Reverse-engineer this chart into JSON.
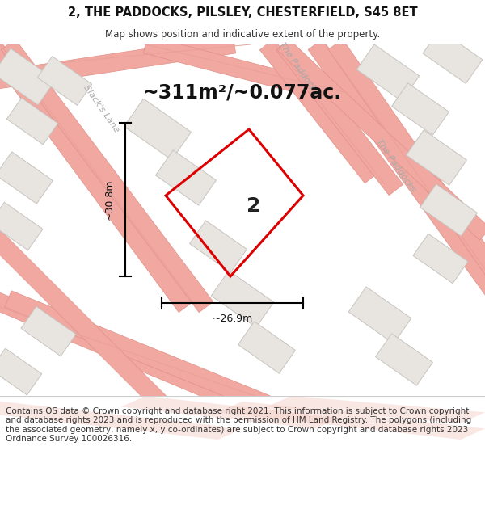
{
  "title_line1": "2, THE PADDOCKS, PILSLEY, CHESTERFIELD, S45 8ET",
  "title_line2": "Map shows position and indicative extent of the property.",
  "area_label": "~311m²/~0.077ac.",
  "plot_number": "2",
  "dim_height": "~30.8m",
  "dim_width": "~26.9m",
  "footer": "Contains OS data © Crown copyright and database right 2021. This information is subject to Crown copyright and database rights 2023 and is reproduced with the permission of HM Land Registry. The polygons (including the associated geometry, namely x, y co-ordinates) are subject to Crown copyright and database rights 2023 Ordnance Survey 100026316.",
  "bg_color": "#ffffff",
  "map_bg": "#f8f6f4",
  "road_line_color": "#f0a8a0",
  "road_outline_color": "#e09088",
  "building_face_color": "#e8e4e0",
  "building_edge_color": "#c8c4c0",
  "plot_outline": "#dd0000",
  "title_fontsize": 10.5,
  "subtitle_fontsize": 8.5,
  "area_fontsize": 17,
  "dim_fontsize": 9,
  "road_label_fontsize": 8,
  "plot_num_fontsize": 18,
  "footer_fontsize": 7.5
}
